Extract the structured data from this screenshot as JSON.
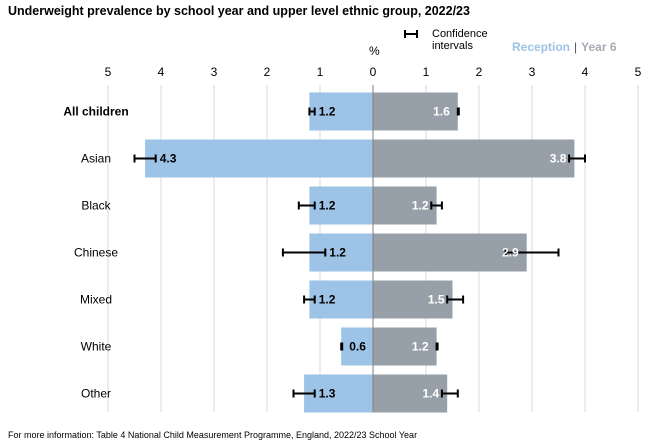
{
  "chart_data": {
    "type": "bar",
    "title": "Underweight prevalence by school year and upper level ethnic group, 2022/23",
    "unit_label": "%",
    "footnote": "For more information: Table 4 National Child Measurement Programme, England, 2022/23 School Year",
    "legend": {
      "ci_label": "Confidence intervals",
      "ci_label_line1": "Confidence",
      "ci_label_line2": "intervals",
      "separator": "|"
    },
    "categories": [
      "All children",
      "Asian",
      "Black",
      "Chinese",
      "Mixed",
      "White",
      "Other"
    ],
    "bold_categories": [
      "All children"
    ],
    "x_ticks": [
      5,
      4,
      3,
      2,
      1,
      0,
      1,
      2,
      3,
      4,
      5
    ],
    "xlim_left": [
      5,
      0
    ],
    "xlim_right": [
      0,
      5
    ],
    "grid": true,
    "series": [
      {
        "name": "Reception",
        "side": "left",
        "color": "#9dc3e6",
        "values": [
          1.2,
          4.3,
          1.2,
          1.2,
          1.2,
          0.6,
          1.3
        ],
        "ci_low": [
          1.1,
          4.1,
          1.1,
          0.9,
          1.1,
          0.6,
          1.1
        ],
        "ci_high": [
          1.2,
          4.5,
          1.4,
          1.7,
          1.3,
          0.6,
          1.5
        ]
      },
      {
        "name": "Year 6",
        "side": "right",
        "color": "#97a0a8",
        "values": [
          1.6,
          3.8,
          1.2,
          2.9,
          1.5,
          1.2,
          1.4
        ],
        "ci_low": [
          1.6,
          3.7,
          1.1,
          2.5,
          1.4,
          1.2,
          1.3
        ],
        "ci_high": [
          1.6,
          4.0,
          1.3,
          3.5,
          1.7,
          1.2,
          1.6
        ]
      }
    ]
  }
}
